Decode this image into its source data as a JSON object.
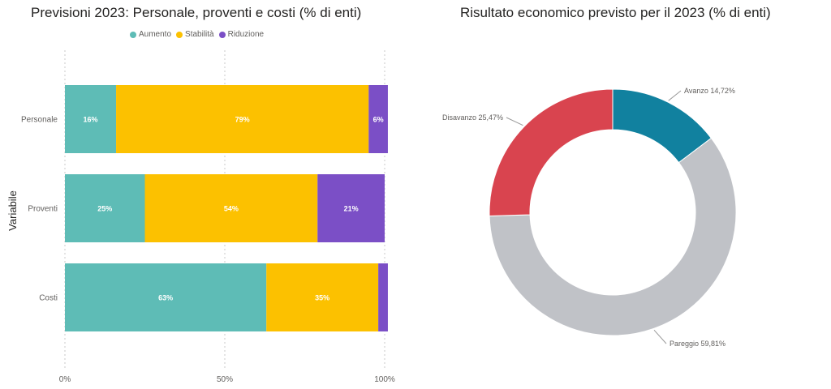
{
  "chart_data": [
    {
      "type": "bar",
      "orientation": "horizontal",
      "stacked": true,
      "title": "Previsioni 2023: Personale, proventi e costi (% di enti)",
      "ylabel": "Variabile",
      "xlabel": "",
      "categories": [
        "Personale",
        "Proventi",
        "Costi"
      ],
      "series": [
        {
          "name": "Aumento",
          "color": "#5ebcb6",
          "values": [
            16,
            25,
            63
          ],
          "labels": [
            "16%",
            "25%",
            "63%"
          ]
        },
        {
          "name": "Stabilità",
          "color": "#fcc100",
          "values": [
            79,
            54,
            35
          ],
          "labels": [
            "79%",
            "54%",
            "35%"
          ]
        },
        {
          "name": "Riduzione",
          "color": "#7b4fc6",
          "values": [
            6,
            21,
            3
          ],
          "labels": [
            "6%",
            "21%",
            ""
          ]
        }
      ],
      "xlim": [
        0,
        100
      ],
      "xticks": [
        "0%",
        "50%",
        "100%"
      ],
      "grid": true,
      "legend": "top"
    },
    {
      "type": "pie",
      "donut": true,
      "title": "Risultato economico previsto per il 2023 (% di enti)",
      "slices": [
        {
          "name": "Avanzo",
          "value": 14.72,
          "label": "Avanzo 14,72%",
          "color": "#11819f"
        },
        {
          "name": "Pareggio",
          "value": 59.81,
          "label": "Pareggio 59,81%",
          "color": "#c0c2c7"
        },
        {
          "name": "Disavanzo",
          "value": 25.47,
          "label": "Disavanzo 25,47%",
          "color": "#d9444f"
        }
      ]
    }
  ]
}
